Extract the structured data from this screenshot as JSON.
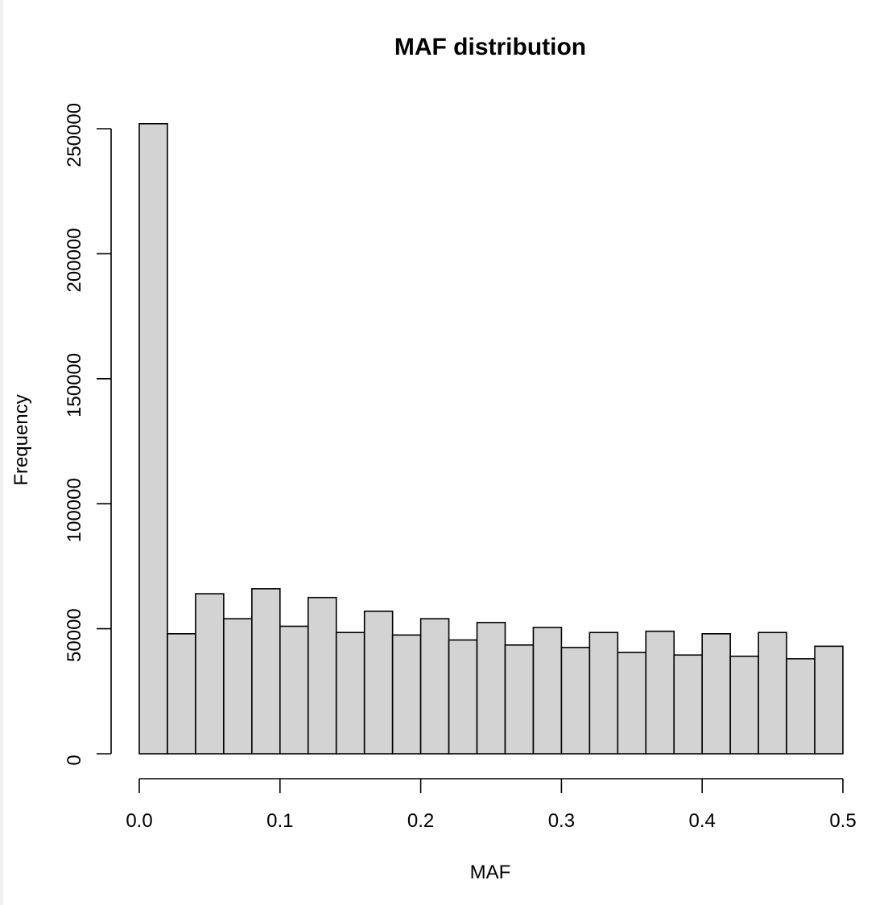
{
  "chart_data": {
    "type": "bar",
    "title": "MAF distribution",
    "xlabel": "MAF",
    "ylabel": "Frequency",
    "bin_width": 0.02,
    "x": [
      0.0,
      0.02,
      0.04,
      0.06,
      0.08,
      0.1,
      0.12,
      0.14,
      0.16,
      0.18,
      0.2,
      0.22,
      0.24,
      0.26,
      0.28,
      0.3,
      0.32,
      0.34,
      0.36,
      0.38,
      0.4,
      0.42,
      0.44,
      0.46,
      0.48
    ],
    "values": [
      252000,
      48000,
      64000,
      54000,
      66000,
      51000,
      62500,
      48500,
      57000,
      47500,
      54000,
      45500,
      52500,
      43500,
      50500,
      42500,
      48500,
      40500,
      49000,
      39500,
      48000,
      39000,
      48500,
      38000,
      43000
    ],
    "xlim": [
      0,
      0.5
    ],
    "ylim": [
      0,
      250000
    ],
    "x_ticks": [
      "0.0",
      "0.1",
      "0.2",
      "0.3",
      "0.4",
      "0.5"
    ],
    "y_ticks": [
      "0",
      "50000",
      "100000",
      "150000",
      "200000",
      "250000"
    ],
    "bar_fill": "#d3d3d3",
    "bar_stroke": "#000000",
    "grid": false,
    "legend": "none"
  }
}
